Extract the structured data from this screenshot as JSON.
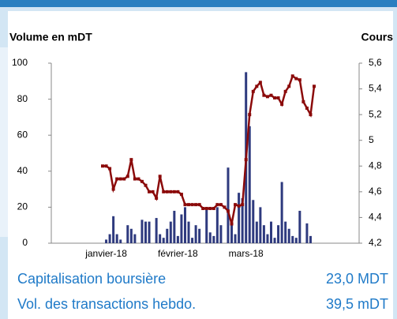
{
  "chart_data": {
    "type": "bar_line",
    "y_label": "Volume en mDT",
    "y2_label": "Cours",
    "categories": [
      null,
      "janvier-18",
      null,
      null,
      null,
      null,
      null,
      null,
      null,
      null,
      null,
      null,
      null,
      null,
      null,
      null,
      null,
      null,
      null,
      null,
      null,
      "février-18",
      null,
      null,
      null,
      null,
      null,
      null,
      null,
      null,
      null,
      null,
      null,
      null,
      null,
      null,
      null,
      null,
      null,
      null,
      "mars-18",
      null,
      null,
      null,
      null,
      null,
      null,
      null,
      null,
      null,
      null,
      null,
      null,
      null,
      null,
      null,
      null,
      null,
      null,
      null
    ],
    "series": [
      {
        "name": "Volume",
        "color": "#2e3a7e",
        "axis": "y",
        "values": [
          0,
          2,
          5,
          15,
          5,
          2,
          0,
          10,
          8,
          5,
          0,
          13,
          12,
          12,
          0,
          14,
          5,
          3,
          8,
          12,
          18,
          4,
          16,
          20,
          12,
          3,
          10,
          8,
          0,
          20,
          6,
          4,
          20,
          10,
          0,
          42,
          12,
          5,
          28,
          25,
          95,
          65,
          24,
          12,
          20,
          10,
          5,
          12,
          3,
          10,
          34,
          12,
          8,
          4,
          3,
          18,
          0,
          11,
          4,
          0
        ]
      },
      {
        "name": "Cours",
        "color": "#8b0a0a",
        "axis": "y2",
        "values": [
          4.8,
          4.8,
          4.78,
          4.62,
          4.7,
          4.7,
          4.7,
          4.72,
          4.85,
          4.7,
          4.7,
          4.68,
          4.65,
          4.6,
          4.6,
          4.55,
          4.72,
          4.6,
          4.6,
          4.6,
          4.6,
          4.6,
          4.58,
          4.5,
          4.5,
          4.5,
          4.5,
          4.5,
          4.47,
          4.47,
          4.47,
          4.47,
          4.5,
          4.5,
          4.48,
          4.45,
          4.35,
          4.5,
          4.49,
          4.5,
          4.85,
          5.2,
          5.38,
          5.42,
          5.45,
          5.35,
          5.34,
          5.35,
          5.33,
          5.33,
          5.28,
          5.38,
          5.42,
          5.5,
          5.48,
          5.47,
          5.3,
          5.25,
          5.2,
          5.42
        ]
      }
    ],
    "ylim": [
      0,
      100
    ],
    "yticks": [
      0,
      20,
      40,
      60,
      80,
      100
    ],
    "y2lim": [
      4.2,
      5.6
    ],
    "y2ticks": [
      {
        "value": 4.2,
        "label": "4,2"
      },
      {
        "value": 4.4,
        "label": "4,4"
      },
      {
        "value": 4.6,
        "label": "4,6"
      },
      {
        "value": 4.8,
        "label": "4,8"
      },
      5,
      {
        "value": 5.2,
        "label": "5,2"
      },
      {
        "value": 5.4,
        "label": "5,4"
      },
      {
        "value": 5.6,
        "label": "5,6"
      }
    ]
  },
  "stats": [
    {
      "label": "Capitalisation boursière",
      "value": "23,0 MDT"
    },
    {
      "label": "Vol. des transactions hebdo.",
      "value": "39,5 mDT"
    }
  ]
}
